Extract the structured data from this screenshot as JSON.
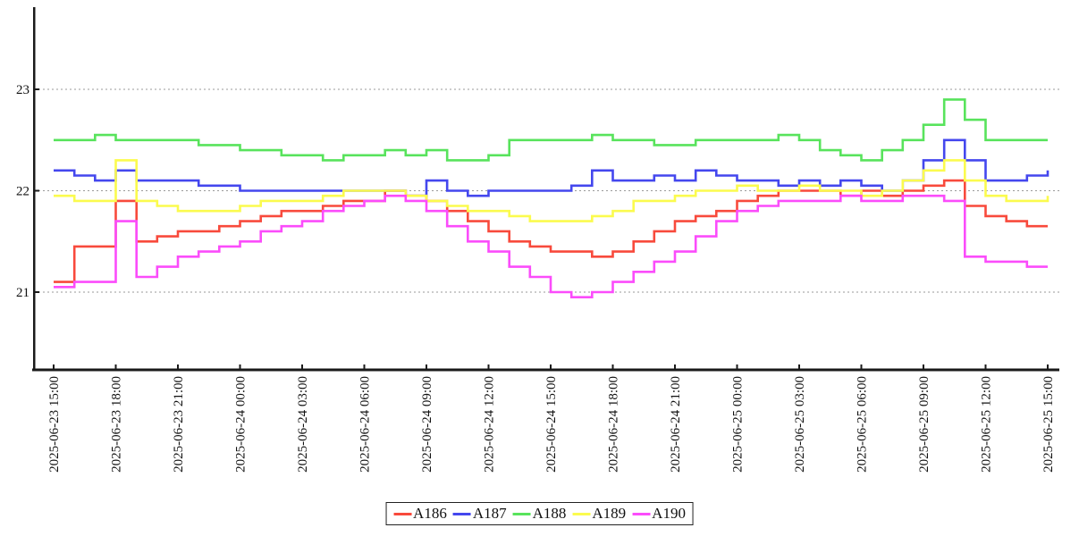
{
  "chart_data": {
    "type": "line",
    "step_style": "step-after",
    "title": "",
    "xlabel": "",
    "ylabel": "",
    "yticks": [
      21,
      22,
      23
    ],
    "ylim": [
      20.3,
      23.8
    ],
    "grid": "horizontal-dotted",
    "legend_position": "bottom-center",
    "x_tick_labels": [
      "2025-06-23 15:00",
      "2025-06-23 18:00",
      "2025-06-23 21:00",
      "2025-06-24 00:00",
      "2025-06-24 03:00",
      "2025-06-24 06:00",
      "2025-06-24 09:00",
      "2025-06-24 12:00",
      "2025-06-24 15:00",
      "2025-06-24 18:00",
      "2025-06-24 21:00",
      "2025-06-25 00:00",
      "2025-06-25 03:00",
      "2025-06-25 06:00",
      "2025-06-25 09:00",
      "2025-06-25 12:00",
      "2025-06-25 15:00"
    ],
    "x_tick_step_hours": 3,
    "x_total_hours": 48,
    "sample_step_hours": 1,
    "series": [
      {
        "name": "A186",
        "color": "#f84a3c",
        "values": [
          21.1,
          21.45,
          21.45,
          21.9,
          21.5,
          21.55,
          21.6,
          21.6,
          21.65,
          21.7,
          21.75,
          21.8,
          21.8,
          21.85,
          21.9,
          21.9,
          22.0,
          21.95,
          21.9,
          21.8,
          21.7,
          21.6,
          21.5,
          21.45,
          21.4,
          21.4,
          21.35,
          21.4,
          21.5,
          21.6,
          21.7,
          21.75,
          21.8,
          21.9,
          21.95,
          22.0,
          22.0,
          22.0,
          21.95,
          22.0,
          21.95,
          22.0,
          22.05,
          22.1,
          21.85,
          21.75,
          21.7,
          21.65,
          21.65
        ]
      },
      {
        "name": "A187",
        "color": "#4447ee",
        "values": [
          22.2,
          22.15,
          22.1,
          22.2,
          22.1,
          22.1,
          22.1,
          22.05,
          22.05,
          22.0,
          22.0,
          22.0,
          22.0,
          22.0,
          22.0,
          22.0,
          22.0,
          21.95,
          22.1,
          22.0,
          21.95,
          22.0,
          22.0,
          22.0,
          22.0,
          22.05,
          22.2,
          22.1,
          22.1,
          22.15,
          22.1,
          22.2,
          22.15,
          22.1,
          22.1,
          22.05,
          22.1,
          22.05,
          22.1,
          22.05,
          22.0,
          22.1,
          22.3,
          22.5,
          22.3,
          22.1,
          22.1,
          22.15,
          22.2
        ]
      },
      {
        "name": "A188",
        "color": "#58e35c",
        "values": [
          22.5,
          22.5,
          22.55,
          22.5,
          22.5,
          22.5,
          22.5,
          22.45,
          22.45,
          22.4,
          22.4,
          22.35,
          22.35,
          22.3,
          22.35,
          22.35,
          22.4,
          22.35,
          22.4,
          22.3,
          22.3,
          22.35,
          22.5,
          22.5,
          22.5,
          22.5,
          22.55,
          22.5,
          22.5,
          22.45,
          22.45,
          22.5,
          22.5,
          22.5,
          22.5,
          22.55,
          22.5,
          22.4,
          22.35,
          22.3,
          22.4,
          22.5,
          22.65,
          22.9,
          22.7,
          22.5,
          22.5,
          22.5,
          22.5
        ]
      },
      {
        "name": "A189",
        "color": "#fbfb4e",
        "values": [
          21.95,
          21.9,
          21.9,
          22.3,
          21.9,
          21.85,
          21.8,
          21.8,
          21.8,
          21.85,
          21.9,
          21.9,
          21.9,
          21.95,
          22.0,
          22.0,
          22.0,
          21.95,
          21.9,
          21.85,
          21.8,
          21.8,
          21.75,
          21.7,
          21.7,
          21.7,
          21.75,
          21.8,
          21.9,
          21.9,
          21.95,
          22.0,
          22.0,
          22.05,
          22.0,
          22.0,
          22.05,
          22.0,
          22.0,
          21.95,
          22.0,
          22.1,
          22.2,
          22.3,
          22.1,
          21.95,
          21.9,
          21.9,
          21.95
        ]
      },
      {
        "name": "A190",
        "color": "#fb4cfb",
        "values": [
          21.05,
          21.1,
          21.1,
          21.7,
          21.15,
          21.25,
          21.35,
          21.4,
          21.45,
          21.5,
          21.6,
          21.65,
          21.7,
          21.8,
          21.85,
          21.9,
          21.95,
          21.9,
          21.8,
          21.65,
          21.5,
          21.4,
          21.25,
          21.15,
          21.0,
          20.95,
          21.0,
          21.1,
          21.2,
          21.3,
          21.4,
          21.55,
          21.7,
          21.8,
          21.85,
          21.9,
          21.9,
          21.9,
          21.95,
          21.9,
          21.9,
          21.95,
          21.95,
          21.9,
          21.35,
          21.3,
          21.3,
          21.25,
          21.25
        ]
      }
    ],
    "colors": {
      "axis": "#1a1a1a",
      "grid": "#9a9a9a",
      "background": "#ffffff",
      "tick_text": "#111111"
    }
  }
}
